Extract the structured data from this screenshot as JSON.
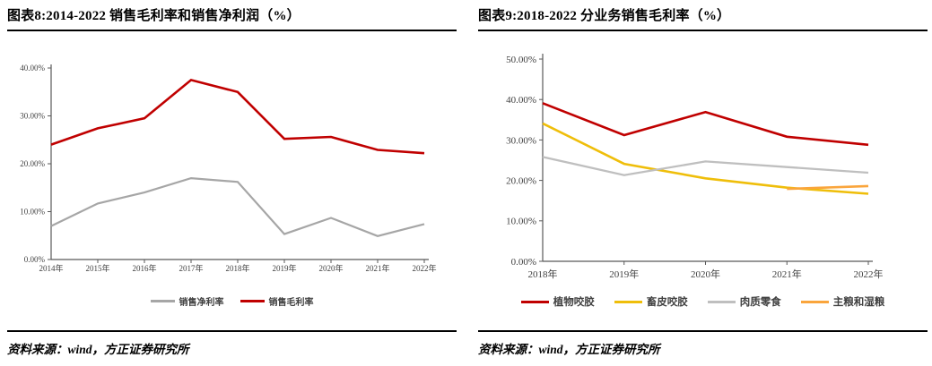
{
  "panels": [
    {
      "title": "图表8:2014-2022 销售毛利率和销售净利润（%）",
      "source": "资料来源：wind，方正证券研究所"
    },
    {
      "title": "图表9:2018-2022 分业务销售毛利率（%）",
      "source": "资料来源：wind，方正证券研究所"
    }
  ],
  "chart_data": [
    {
      "type": "line",
      "title": "图表8:2014-2022 销售毛利率和销售净利润（%）",
      "categories": [
        "2014年",
        "2015年",
        "2016年",
        "2017年",
        "2018年",
        "2019年",
        "2020年",
        "2021年",
        "2022年"
      ],
      "series": [
        {
          "name": "销售净利率",
          "color": "#A6A6A6",
          "values": [
            7.0,
            11.7,
            14.0,
            17.0,
            16.2,
            5.3,
            8.7,
            4.9,
            7.4
          ]
        },
        {
          "name": "销售毛利率",
          "color": "#C00000",
          "values": [
            24.0,
            27.4,
            29.5,
            37.5,
            35.0,
            25.2,
            25.6,
            22.9,
            22.2
          ]
        }
      ],
      "ylim": [
        0,
        40
      ],
      "ytick_step": 10,
      "ytick_labels": [
        "0.00%",
        "10.00%",
        "20.00%",
        "30.00%",
        "40.00%"
      ],
      "legend_position": "bottom",
      "grid": false
    },
    {
      "type": "line",
      "title": "图表9:2018-2022 分业务销售毛利率（%）",
      "categories": [
        "2018年",
        "2019年",
        "2020年",
        "2021年",
        "2022年"
      ],
      "series": [
        {
          "name": "植物咬胶",
          "color": "#C00000",
          "values": [
            39.1,
            31.2,
            36.9,
            30.8,
            28.8
          ]
        },
        {
          "name": "畜皮咬胶",
          "color": "#EFBE0A",
          "values": [
            34.1,
            24.1,
            20.5,
            18.2,
            16.7
          ]
        },
        {
          "name": "肉质零食",
          "color": "#BFBFBF",
          "values": [
            25.8,
            21.3,
            24.7,
            23.3,
            21.9
          ]
        },
        {
          "name": "主粮和湿粮",
          "color": "#FAA53C",
          "values": [
            null,
            null,
            null,
            17.9,
            18.6
          ]
        }
      ],
      "ylim": [
        0,
        50
      ],
      "ytick_step": 10,
      "ytick_labels": [
        "0.00%",
        "10.00%",
        "20.00%",
        "30.00%",
        "40.00%",
        "50.00%"
      ],
      "legend_position": "bottom",
      "grid": false
    }
  ]
}
